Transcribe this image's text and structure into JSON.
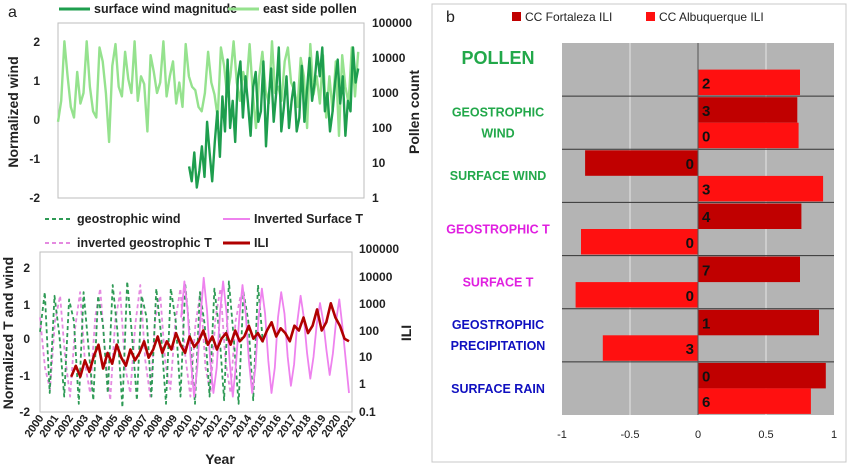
{
  "panel_labels": {
    "a": "a",
    "b": "b"
  },
  "colors": {
    "wind": "#1e9e4e",
    "pollen": "#95e28e",
    "geostrophic_wind": "#2e9a55",
    "inverted_surface_t": "#ee82ee",
    "inverted_geostrophic_t": "#e48ae0",
    "ili": "#b00000",
    "fortaleza": "#c00000",
    "albuquerque": "#ff1010",
    "panel_bg": "#b4b4b4"
  },
  "chart_data": [
    {
      "type": "line",
      "panel": "a-top",
      "title": "",
      "ylabel": "Normalized wind",
      "y2label": "Pollen count",
      "ylim": [
        -2,
        2.6
      ],
      "y2lim_log10": [
        0,
        5
      ],
      "yticks": [
        "-2",
        "-1",
        "0",
        "1",
        "2"
      ],
      "y2ticks": [
        "1",
        "10",
        "100",
        "1000",
        "10000",
        "100000"
      ],
      "legend": "top",
      "grid": false,
      "series": [
        {
          "name": "surface wind magnitude",
          "axis": "y2",
          "x_start": 2009.0,
          "x_end": 2020.6,
          "values": [
            8,
            3,
            20,
            2,
            6,
            30,
            4,
            150,
            20,
            3,
            40,
            300,
            15,
            800,
            80,
            9000,
            100,
            600,
            40,
            2500,
            8000,
            200,
            3000,
            500,
            60,
            1500,
            4000,
            150,
            300,
            8000,
            30,
            600,
            5000,
            150,
            1000,
            20000,
            80,
            400,
            3000,
            100,
            600,
            2000,
            80,
            200,
            6000,
            150,
            1200,
            10000,
            600,
            2000,
            15000,
            3000,
            20000,
            300,
            1000,
            80,
            300,
            2000,
            9000,
            500,
            3000,
            60,
            600,
            300,
            20000,
            2000,
            5000
          ]
        },
        {
          "name": "east side pollen",
          "axis": "y2",
          "x_start": 2000.0,
          "x_end": 2020.6,
          "values": [
            150,
            600,
            30000,
            3000,
            400,
            200,
            4000,
            500,
            1000,
            30000,
            1500,
            300,
            200,
            20000,
            8000,
            1000,
            40,
            6000,
            25000,
            1500,
            800,
            15000,
            2500,
            1000,
            30000,
            600,
            3000,
            1800,
            80,
            12000,
            4000,
            1000,
            2000,
            30000,
            800,
            3000,
            8000,
            500,
            2000,
            400,
            25000,
            3000,
            1500,
            1200,
            400,
            300,
            1000,
            15000,
            2000,
            900,
            200,
            20000,
            6000,
            800,
            3000,
            30000,
            2000,
            600,
            4000,
            1500,
            25000,
            1000,
            100,
            3000,
            15000,
            1200,
            500,
            30000,
            1000,
            1500,
            600,
            8000,
            20000,
            2000,
            1200,
            400,
            10000,
            3000,
            100,
            25000,
            900,
            3000,
            500,
            12000,
            200,
            3000,
            300,
            8000,
            60,
            12000,
            1500,
            500,
            20000,
            800,
            15000
          ]
        }
      ]
    },
    {
      "type": "line",
      "panel": "a-bottom",
      "title": "",
      "xlabel": "Year",
      "ylabel": "Normalized T and wind",
      "y2label": "ILI",
      "ylim": [
        -2,
        2.6
      ],
      "y2lim_log10": [
        -1,
        5
      ],
      "yticks": [
        "-2",
        "-1",
        "0",
        "1",
        "2"
      ],
      "y2ticks": [
        "0.1",
        "1",
        "10",
        "100",
        "1000",
        "10000",
        "100000"
      ],
      "xlim": [
        2000,
        2021
      ],
      "xticks": [
        "2000",
        "2001",
        "2002",
        "2003",
        "2004",
        "2005",
        "2006",
        "2007",
        "2008",
        "2009",
        "2010",
        "2011",
        "2012",
        "2013",
        "2014",
        "2015",
        "2016",
        "2017",
        "2018",
        "2019",
        "2020",
        "2021"
      ],
      "legend": "top",
      "grid": false,
      "series": [
        {
          "name": "geostrophic wind",
          "style": "dashed",
          "x_start": 2000.0,
          "x_end": 2015.0,
          "values": [
            0.2,
            1.3,
            -1.5,
            1.2,
            0.1,
            -1.6,
            1.1,
            0.5,
            -1.8,
            1.3,
            -0.2,
            -1.7,
            1.2,
            0.4,
            -1.5,
            1.5,
            0.2,
            -1.9,
            1.6,
            0.1,
            -1.7,
            1.2,
            0.6,
            -1.6,
            1.4,
            0.1,
            -1.8,
            1.4,
            0.5,
            -1.6,
            1.5,
            0.0,
            -1.8,
            1.3,
            0.4,
            -1.6,
            1.4,
            0.2,
            -1.7,
            1.6,
            0.0,
            -1.8,
            1.3,
            0.5,
            -1.7,
            1.5,
            -0.1
          ]
        },
        {
          "name": "Inverted Surface T",
          "style": "solid",
          "x_start": 2009.5,
          "x_end": 2020.8,
          "values": [
            0.6,
            1.6,
            0.8,
            -0.6,
            -1.6,
            -0.8,
            0.6,
            1.7,
            0.8,
            -0.6,
            -1.5,
            -0.8,
            0.7,
            1.6,
            0.8,
            -0.6,
            -1.6,
            -0.7,
            0.6,
            1.5,
            0.7,
            -0.6,
            -1.5,
            -0.8,
            0.6,
            1.4,
            0.7,
            -0.6,
            -1.5,
            -0.8,
            0.6,
            1.3,
            0.7,
            -0.5,
            -1.3,
            -0.7,
            0.5,
            1.2,
            0.6,
            -0.4,
            -1.1,
            -0.5,
            0.4,
            1.0,
            0.5,
            -0.3,
            -1.0,
            -0.4,
            0.5,
            1.1,
            0.3,
            -0.6,
            -1.5
          ]
        },
        {
          "name": "inverted geostrophic T",
          "style": "dashed",
          "x_start": 2000.0,
          "x_end": 2013.5,
          "values": [
            0.6,
            -0.8,
            -1.4,
            0.5,
            1.2,
            -0.5,
            -1.6,
            0.3,
            1.3,
            -0.7,
            -1.5,
            0.6,
            1.4,
            -0.4,
            -1.7,
            0.5,
            1.3,
            -0.8,
            -1.5,
            0.4,
            1.5,
            -0.6,
            -1.6,
            0.6,
            1.2,
            -0.7,
            -1.4,
            0.5,
            1.4,
            -0.5,
            -1.6,
            0.4,
            1.3,
            -0.8,
            -1.5,
            0.6,
            1.4,
            -0.6,
            -1.5,
            0.5,
            1.2
          ]
        },
        {
          "name": "ILI",
          "style": "solid-thick",
          "x_start": 2002.1,
          "x_end": 2020.8,
          "values": [
            2,
            5,
            2,
            8,
            3,
            12,
            30,
            4,
            15,
            6,
            30,
            10,
            5,
            20,
            8,
            15,
            40,
            10,
            20,
            60,
            15,
            40,
            20,
            80,
            30,
            15,
            60,
            25,
            40,
            100,
            30,
            60,
            20,
            50,
            80,
            30,
            100,
            40,
            60,
            150,
            50,
            80,
            40,
            100,
            200,
            60,
            120,
            80,
            40,
            150,
            100,
            300,
            80,
            150,
            600,
            100,
            200,
            1000,
            300,
            150,
            50,
            40
          ]
        }
      ]
    },
    {
      "type": "bar",
      "orientation": "horizontal",
      "panel": "b",
      "title": "",
      "categories": [
        "POLLEN",
        "GEOSTROPHIC WIND",
        "SURFACE WIND",
        "GEOSTROPHIC T",
        "SURFACE T",
        "GEOSTROPHIC PRECIPITATION",
        "SURFACE RAIN"
      ],
      "category_lines": [
        [
          "POLLEN"
        ],
        [
          "GEOSTROPHIC",
          "WIND"
        ],
        [
          "SURFACE WIND"
        ],
        [
          "GEOSTROPHIC T"
        ],
        [
          "SURFACE T"
        ],
        [
          "GEOSTROPHIC",
          "PRECIPITATION"
        ],
        [
          "SURFACE RAIN"
        ]
      ],
      "category_colors": [
        "#22a84a",
        "#22a84a",
        "#22a84a",
        "#e020e0",
        "#e020e0",
        "#1010c0",
        "#1010c0"
      ],
      "xlim": [
        -1,
        1
      ],
      "xticks": [
        "-1",
        "-0.5",
        "0",
        "0.5",
        "1"
      ],
      "legend": "top",
      "grid": true,
      "series": [
        {
          "name": "CC Fortaleza ILI",
          "values": [
            null,
            0.73,
            -0.83,
            0.76,
            0.75,
            0.89,
            0.94
          ],
          "labels": [
            "",
            "3",
            "0",
            "4",
            "7",
            "1",
            "0"
          ]
        },
        {
          "name": "CC Albuquerque ILI",
          "values": [
            0.75,
            0.74,
            0.92,
            -0.86,
            -0.9,
            -0.7,
            0.83
          ],
          "labels": [
            "2",
            "0",
            "3",
            "0",
            "0",
            "3",
            "6"
          ]
        }
      ]
    }
  ]
}
